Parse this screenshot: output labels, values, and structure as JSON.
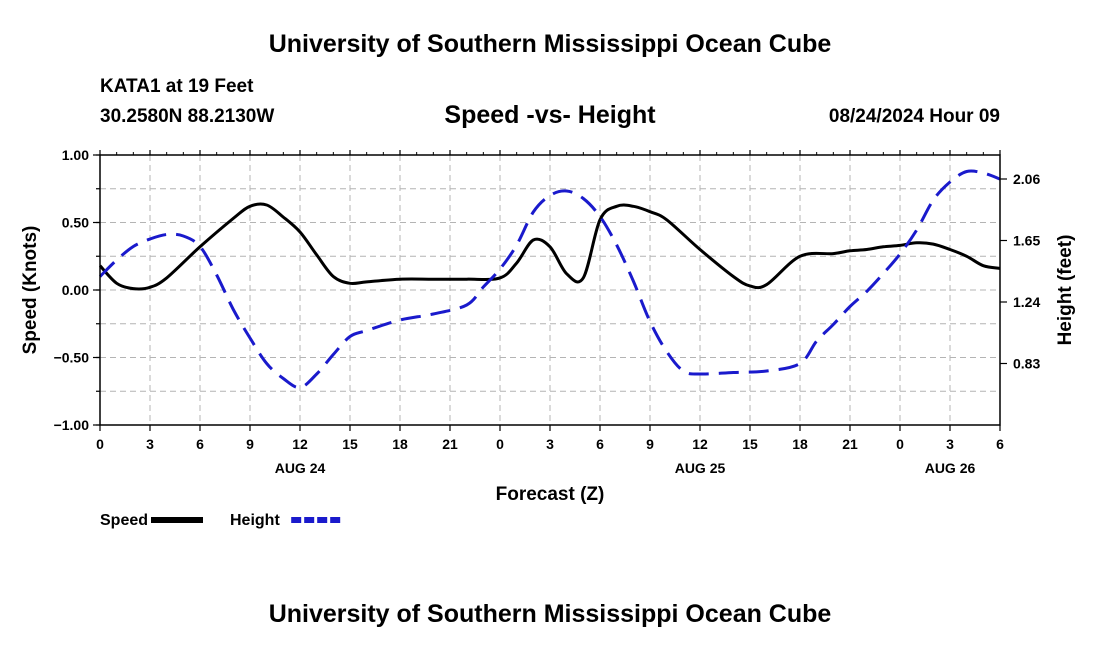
{
  "page": {
    "title_top": "University of Southern Mississippi Ocean Cube",
    "title_bottom": "University of Southern Mississippi Ocean Cube",
    "station": "KATA1 at 19 Feet",
    "coordinates": "30.2580N  88.2130W",
    "subtitle": "Speed -vs- Height",
    "datetime": "08/24/2024 Hour 09"
  },
  "chart_data": {
    "type": "line",
    "title": "Speed -vs- Height",
    "xlabel": "Forecast (Z)",
    "ylabel": "Speed (Knots)",
    "y2label": "Height (feet)",
    "xlim": [
      0,
      54
    ],
    "ylim": [
      -1.0,
      1.0
    ],
    "y2lim": [
      0.42,
      2.22
    ],
    "grid": true,
    "x_ticks": [
      0,
      3,
      6,
      9,
      12,
      15,
      18,
      21,
      24,
      27,
      30,
      33,
      36,
      39,
      42,
      45,
      48,
      51,
      54
    ],
    "x_tick_labels": [
      "0",
      "3",
      "6",
      "9",
      "12",
      "15",
      "18",
      "21",
      "0",
      "3",
      "6",
      "9",
      "12",
      "15",
      "18",
      "21",
      "0",
      "3",
      "6"
    ],
    "date_labels": [
      {
        "x": 12,
        "label": "AUG 24"
      },
      {
        "x": 36,
        "label": "AUG 25"
      },
      {
        "x": 51,
        "label": "AUG 26"
      }
    ],
    "y_ticks": [
      -1.0,
      -0.5,
      0.0,
      0.5,
      1.0
    ],
    "y_tick_labels": [
      "−1.00",
      "−0.50",
      "0.00",
      "0.50",
      "1.00"
    ],
    "y2_ticks": [
      0.83,
      1.24,
      1.65,
      2.06
    ],
    "y2_tick_labels": [
      "0.83",
      "1.24",
      "1.65",
      "2.06"
    ],
    "legend": [
      {
        "label": "Speed",
        "color": "#000000",
        "style": "solid"
      },
      {
        "label": "Height",
        "color": "#1a1acc",
        "style": "dashed"
      }
    ],
    "series": [
      {
        "name": "Speed",
        "axis": "left",
        "color": "#000000",
        "style": "solid",
        "x": [
          0,
          1,
          2,
          3,
          4,
          6,
          8,
          9,
          10,
          11,
          12,
          13,
          14,
          15,
          16,
          18,
          20,
          22,
          24,
          25,
          26,
          27,
          28,
          29,
          30,
          31,
          32,
          33,
          34,
          36,
          38,
          39,
          40,
          42,
          44,
          45,
          46,
          47,
          48,
          49,
          50,
          51,
          52,
          53,
          54
        ],
        "values": [
          0.18,
          0.05,
          0.01,
          0.02,
          0.09,
          0.32,
          0.53,
          0.62,
          0.63,
          0.54,
          0.43,
          0.26,
          0.1,
          0.05,
          0.06,
          0.08,
          0.08,
          0.08,
          0.09,
          0.2,
          0.37,
          0.32,
          0.12,
          0.09,
          0.52,
          0.62,
          0.62,
          0.58,
          0.52,
          0.3,
          0.1,
          0.03,
          0.04,
          0.25,
          0.27,
          0.29,
          0.3,
          0.32,
          0.33,
          0.35,
          0.34,
          0.3,
          0.25,
          0.18,
          0.16
        ]
      },
      {
        "name": "Height",
        "axis": "right",
        "color": "#1a1acc",
        "style": "dashed",
        "x": [
          0,
          1,
          2,
          3,
          4,
          5,
          6,
          7,
          8,
          9,
          10,
          11,
          12,
          13,
          14,
          15,
          16,
          18,
          20,
          22,
          23,
          24,
          25,
          26,
          27,
          28,
          29,
          30,
          31,
          32,
          33,
          34,
          35,
          36,
          38,
          40,
          42,
          43,
          44,
          45,
          46,
          47,
          48,
          49,
          50,
          51,
          52,
          53,
          54
        ],
        "values": [
          1.41,
          1.52,
          1.61,
          1.66,
          1.69,
          1.68,
          1.61,
          1.42,
          1.19,
          1.0,
          0.83,
          0.73,
          0.67,
          0.76,
          0.89,
          1.01,
          1.05,
          1.12,
          1.16,
          1.22,
          1.34,
          1.46,
          1.62,
          1.84,
          1.95,
          1.98,
          1.93,
          1.81,
          1.62,
          1.38,
          1.11,
          0.91,
          0.78,
          0.76,
          0.77,
          0.78,
          0.83,
          0.98,
          1.09,
          1.21,
          1.31,
          1.43,
          1.56,
          1.72,
          1.92,
          2.04,
          2.11,
          2.1,
          2.06
        ]
      }
    ]
  }
}
